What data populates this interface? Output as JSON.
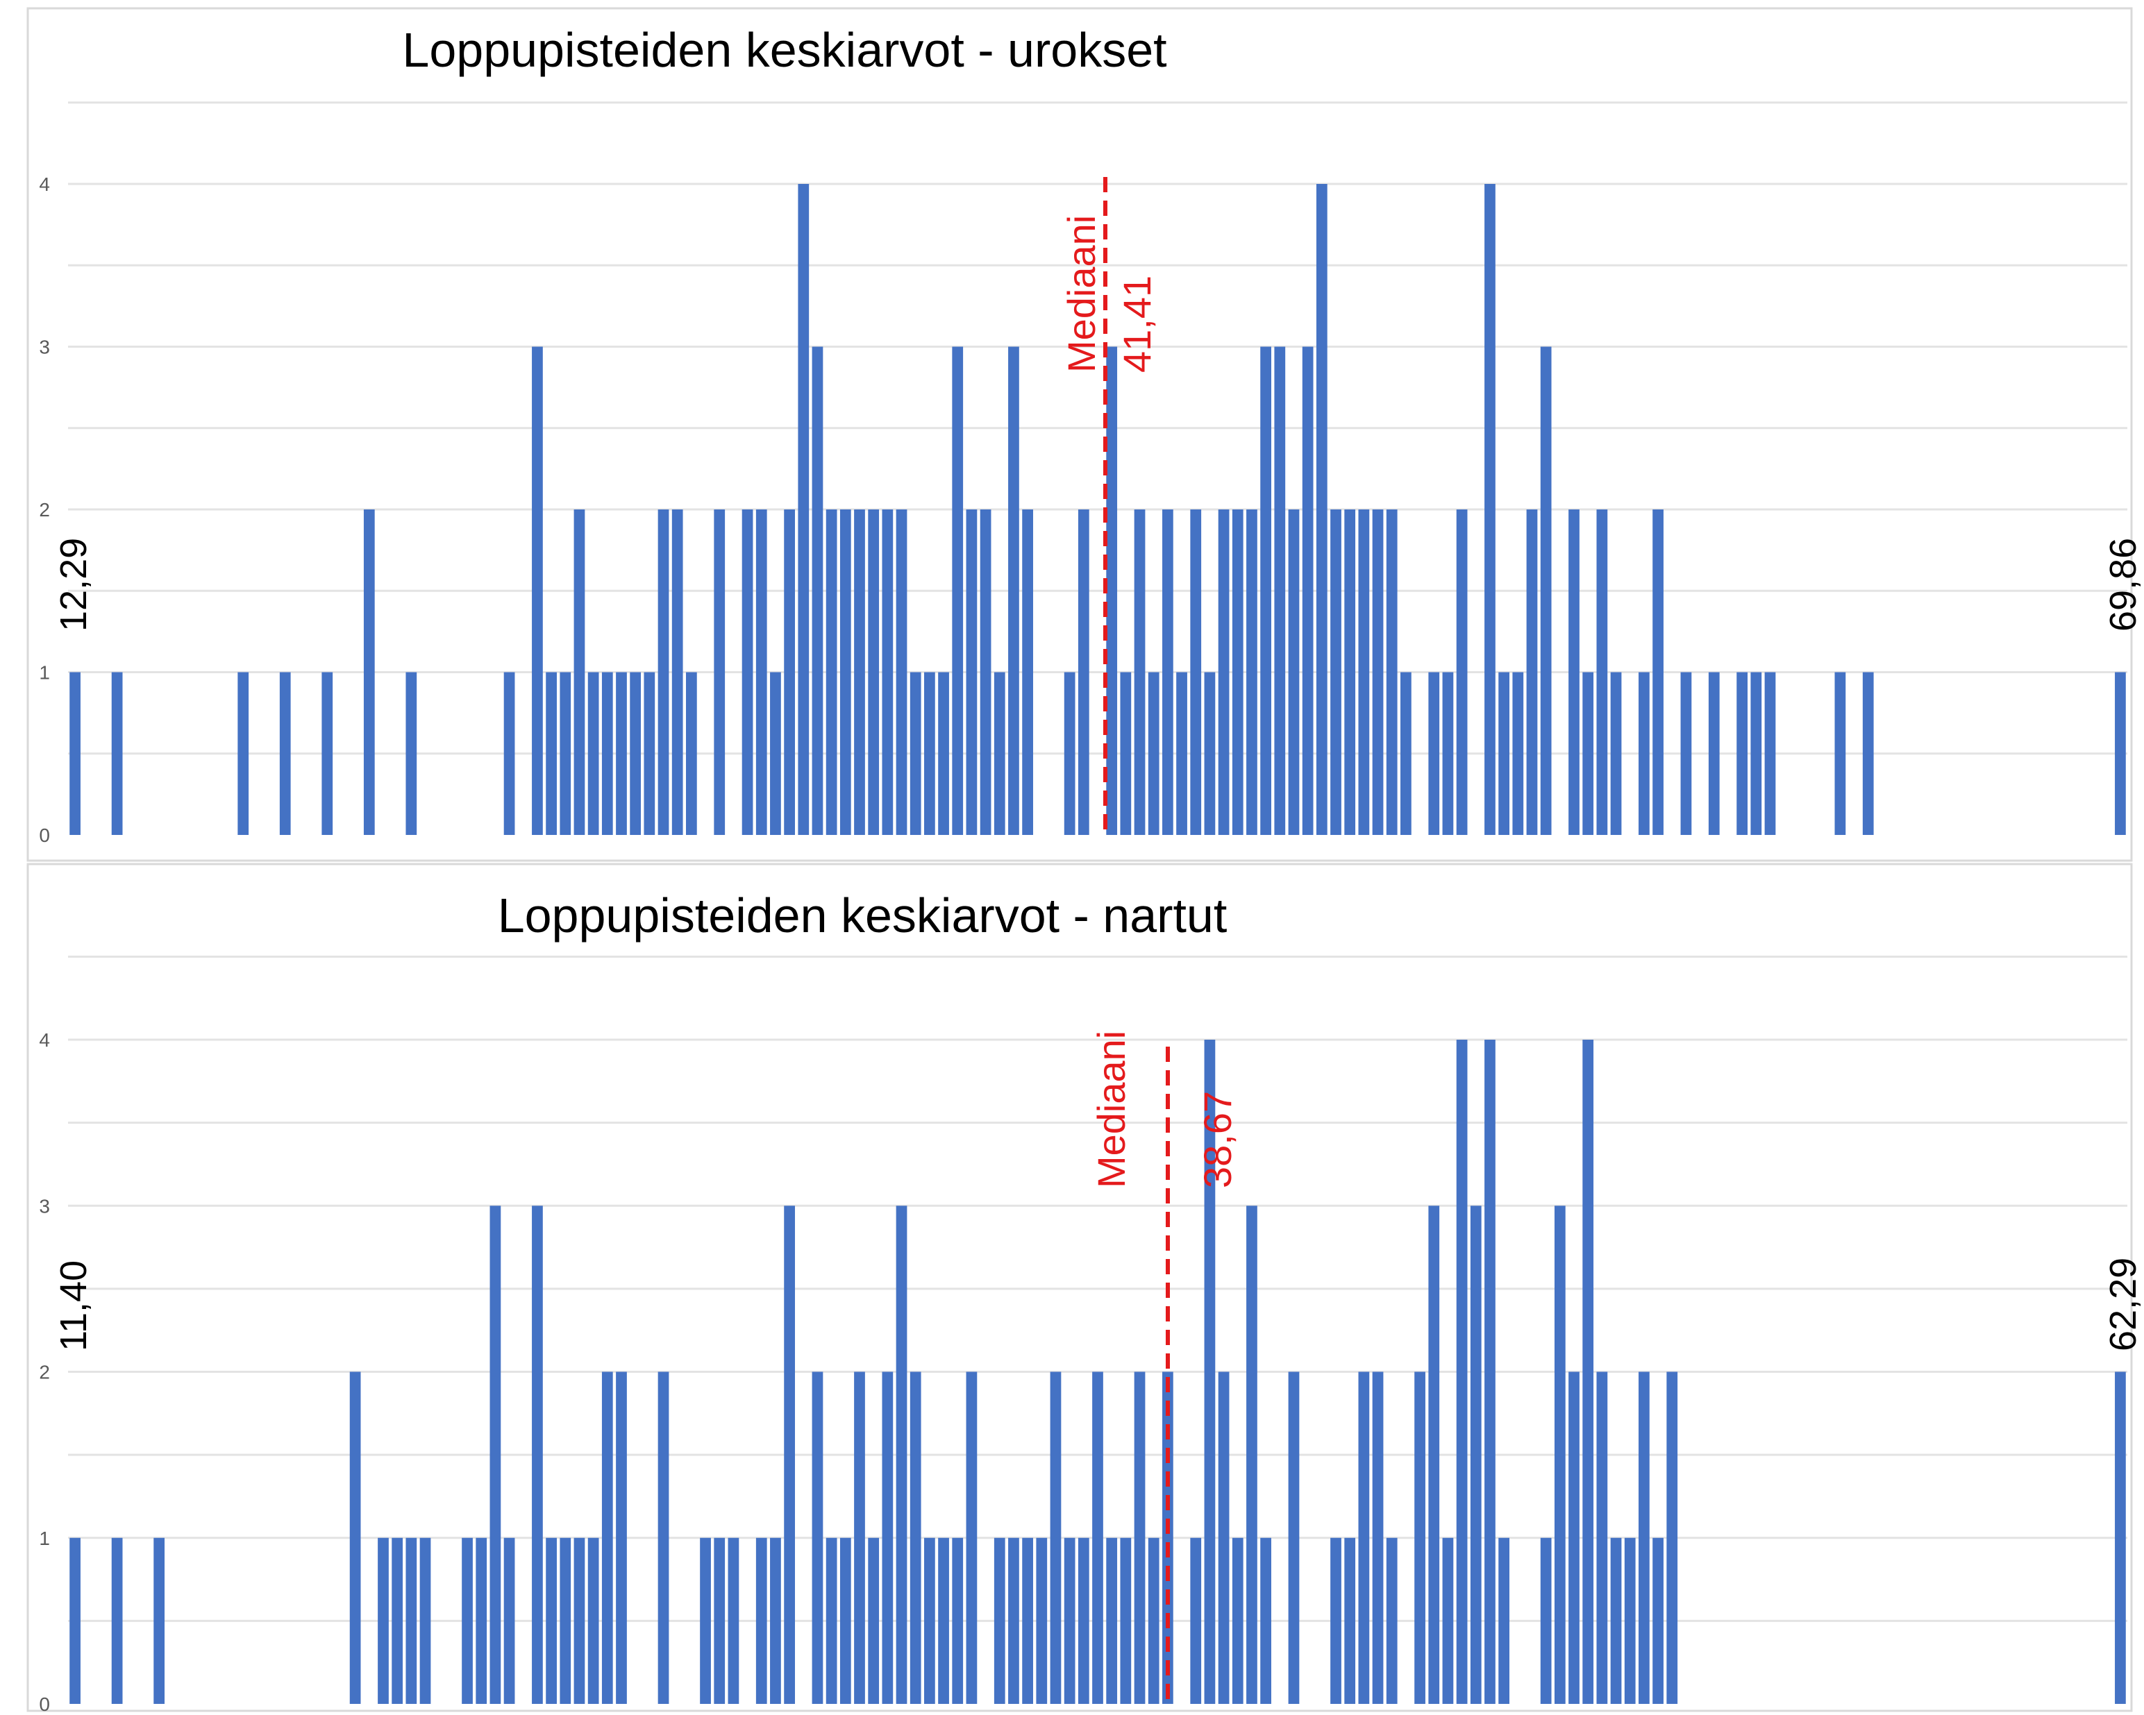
{
  "chart_data": [
    {
      "type": "bar",
      "title": "Loppupisteiden keskiarvot - urokset",
      "xlabel": "",
      "ylabel": "",
      "ylim": [
        0,
        4.5
      ],
      "yticks": [
        0,
        1,
        2,
        3,
        4
      ],
      "grid": true,
      "legend": "none",
      "bar_color": "#4472C4",
      "median_color": "#E41A1C",
      "x_min_label": "12,29",
      "x_max_label": "69,86",
      "median_label": "Mediaani",
      "median_value": "41,41",
      "bins": 147,
      "values": [
        1,
        0,
        0,
        1,
        0,
        0,
        0,
        0,
        0,
        0,
        0,
        0,
        1,
        0,
        0,
        1,
        0,
        0,
        1,
        0,
        0,
        2,
        0,
        0,
        1,
        0,
        0,
        0,
        0,
        0,
        0,
        1,
        0,
        3,
        1,
        1,
        2,
        1,
        1,
        1,
        1,
        1,
        2,
        2,
        1,
        0,
        2,
        0,
        2,
        2,
        1,
        2,
        4,
        3,
        2,
        2,
        2,
        2,
        2,
        2,
        1,
        1,
        1,
        3,
        2,
        2,
        1,
        3,
        2,
        0,
        0,
        1,
        2,
        0,
        3,
        1,
        2,
        1,
        2,
        1,
        2,
        1,
        2,
        2,
        2,
        3,
        3,
        2,
        3,
        4,
        2,
        2,
        2,
        2,
        2,
        1,
        0,
        1,
        1,
        2,
        0,
        4,
        1,
        1,
        2,
        3,
        0,
        2,
        1,
        2,
        1,
        0,
        1,
        2,
        0,
        1,
        0,
        1,
        0,
        1,
        1,
        1,
        0,
        0,
        0,
        0,
        1,
        0,
        1,
        0,
        0,
        0,
        0,
        0,
        0,
        0,
        0,
        0,
        0,
        0,
        0,
        0,
        0,
        0,
        0,
        0,
        1
      ]
    },
    {
      "type": "bar",
      "title": "Loppupisteiden keskiarvot - nartut",
      "xlabel": "",
      "ylabel": "",
      "ylim": [
        0,
        4.5
      ],
      "yticks": [
        0,
        1,
        2,
        3,
        4
      ],
      "grid": true,
      "legend": "none",
      "bar_color": "#4472C4",
      "median_color": "#E41A1C",
      "x_min_label": "11,40",
      "x_max_label": "62,29",
      "median_label": "Mediaani",
      "median_value": "38,67",
      "bins": 147,
      "values": [
        1,
        0,
        0,
        1,
        0,
        0,
        1,
        0,
        0,
        0,
        0,
        0,
        0,
        0,
        0,
        0,
        0,
        0,
        0,
        0,
        2,
        0,
        1,
        1,
        1,
        1,
        0,
        0,
        1,
        1,
        3,
        1,
        0,
        3,
        1,
        1,
        1,
        1,
        2,
        2,
        0,
        0,
        2,
        0,
        0,
        1,
        1,
        1,
        0,
        1,
        1,
        3,
        0,
        2,
        1,
        1,
        2,
        1,
        2,
        3,
        2,
        1,
        1,
        1,
        2,
        0,
        1,
        1,
        1,
        1,
        2,
        1,
        1,
        2,
        1,
        1,
        2,
        1,
        2,
        0,
        1,
        4,
        2,
        1,
        3,
        1,
        0,
        2,
        0,
        0,
        1,
        1,
        2,
        2,
        1,
        0,
        2,
        3,
        1,
        4,
        3,
        4,
        1,
        0,
        0,
        1,
        3,
        2,
        4,
        2,
        1,
        1,
        2,
        1,
        2,
        0,
        0,
        0,
        0,
        0,
        0,
        0,
        0,
        0,
        0,
        0,
        0,
        0,
        0,
        0,
        0,
        0,
        0,
        0,
        0,
        0,
        0,
        0,
        0,
        0,
        0,
        0,
        0,
        0,
        0,
        0,
        2
      ]
    }
  ]
}
